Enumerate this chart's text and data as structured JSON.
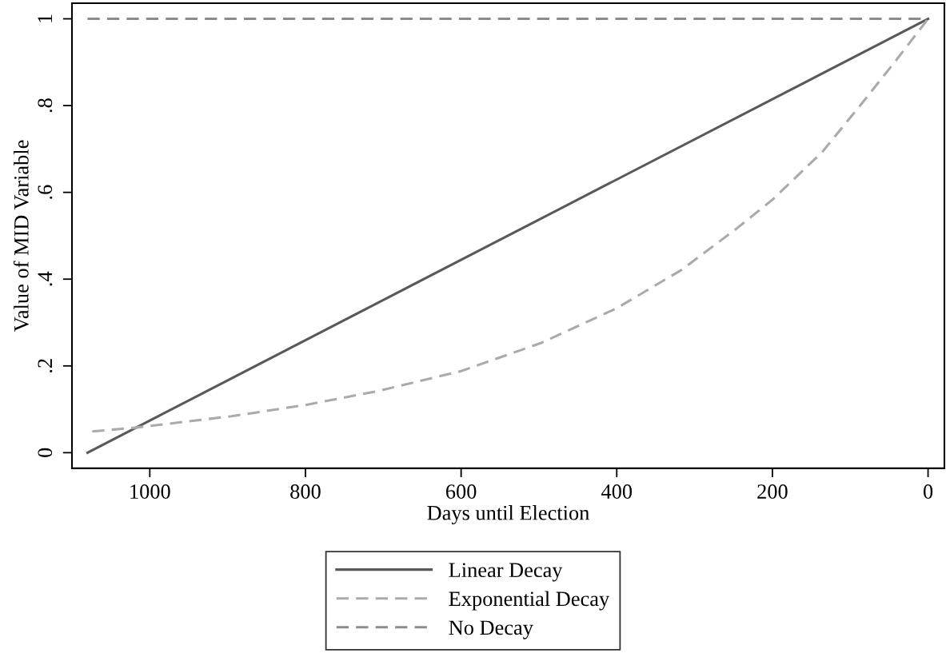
{
  "chart_data": {
    "type": "line",
    "xlabel": "Days until Election",
    "ylabel": "Value of MID Variable",
    "xlim": [
      1100,
      -21
    ],
    "xticks": [
      1000,
      800,
      600,
      400,
      200,
      0
    ],
    "ylim": [
      -0.036,
      1.036
    ],
    "yticks": [
      0,
      {
        "value": 0.2,
        "label": ".2"
      },
      {
        "value": 0.4,
        "label": ".4"
      },
      {
        "value": 0.6,
        "label": ".6"
      },
      {
        "value": 0.8,
        "label": ".8"
      },
      1
    ],
    "grid": false,
    "legend": "bottom",
    "marker": "none",
    "series": [
      {
        "name": "Linear Decay",
        "color": "#595959",
        "line_style": "solid",
        "x": [
          1080,
          0
        ],
        "values": [
          0,
          1
        ]
      },
      {
        "name": "Exponential Decay",
        "color": "#aaaaaa",
        "line_style": "dashed",
        "x": [
          1074,
          1017,
          895,
          800,
          707,
          600,
          497,
          400,
          317,
          245,
          200,
          136,
          86,
          43,
          0
        ],
        "values": [
          0.049,
          0.058,
          0.084,
          0.11,
          0.142,
          0.188,
          0.253,
          0.333,
          0.421,
          0.518,
          0.583,
          0.693,
          0.803,
          0.9,
          1.0
        ]
      },
      {
        "name": "No Decay",
        "color": "#8c8c8c",
        "line_style": "dashed",
        "x": [
          1080,
          0
        ],
        "values": [
          1,
          1
        ]
      }
    ]
  }
}
